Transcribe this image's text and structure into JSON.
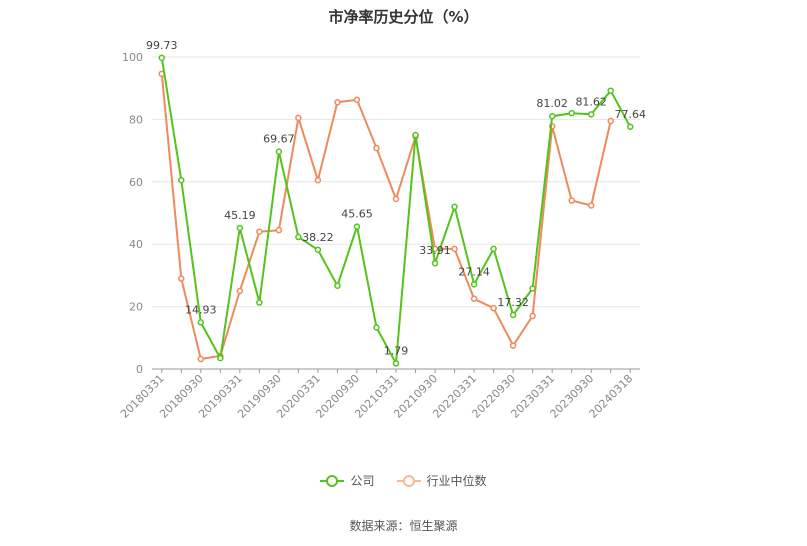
{
  "chart_data": {
    "type": "line",
    "title": "市净率历史分位（%）",
    "source": "数据来源：恒生聚源",
    "categories": [
      "20180331",
      "20180630",
      "20180930",
      "20181231",
      "20190331",
      "20190630",
      "20190930",
      "20191231",
      "20200331",
      "20200630",
      "20200930",
      "20201231",
      "20210331",
      "20210630",
      "20210930",
      "20211231",
      "20220331",
      "20220630",
      "20220930",
      "20221231",
      "20230331",
      "20230630",
      "20230930",
      "20231231",
      "20240318"
    ],
    "xticks": [
      "20180331",
      "20180930",
      "20190331",
      "20190930",
      "20200331",
      "20200930",
      "20210331",
      "20210930",
      "20220331",
      "20220930",
      "20230331",
      "20230930",
      "20240318"
    ],
    "ylim": [
      0,
      100
    ],
    "yticks": [
      0,
      20,
      40,
      60,
      80,
      100
    ],
    "series": [
      {
        "name": "公司",
        "color": "#52c41a",
        "values": [
          99.73,
          60.5,
          14.93,
          3.5,
          45.19,
          21.3,
          69.67,
          42.3,
          38.22,
          26.7,
          45.65,
          13.3,
          1.79,
          75.0,
          33.91,
          52.0,
          27.14,
          38.5,
          17.32,
          25.8,
          81.02,
          82.0,
          81.62,
          89.2,
          77.64
        ],
        "labels": {
          "0": "99.73",
          "2": "14.93",
          "4": "45.19",
          "6": "69.67",
          "8": "38.22",
          "10": "45.65",
          "12": "1.79",
          "14": "33.91",
          "16": "27.14",
          "18": "17.32",
          "20": "81.02",
          "22": "81.62",
          "24": "77.64"
        }
      },
      {
        "name": "行业中位数",
        "color": "#f0895c",
        "values": [
          94.6,
          29.0,
          3.2,
          4.2,
          25.0,
          44.0,
          44.5,
          80.5,
          60.5,
          85.5,
          86.3,
          70.8,
          54.5,
          74.5,
          38.5,
          38.5,
          22.5,
          19.5,
          7.5,
          17.0,
          77.8,
          54.0,
          52.4,
          79.5,
          null
        ]
      }
    ]
  },
  "legend": {
    "company": "公司",
    "industry": "行业中位数"
  }
}
